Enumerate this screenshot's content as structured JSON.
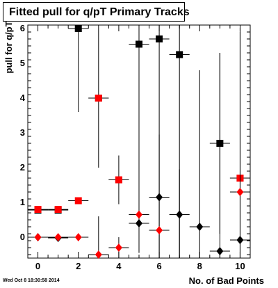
{
  "chart_data": {
    "type": "scatter",
    "title": "Fitted pull for q/pT Primary Tracks",
    "xlabel": "No. of Bad Points",
    "ylabel": "pull for q/pT",
    "timestamp": "Wed Oct  8 18:30:58 2014",
    "xlim": [
      -0.5,
      10.5
    ],
    "ylim": [
      -0.6,
      6.1
    ],
    "xticks": [
      0,
      2,
      4,
      6,
      8,
      10
    ],
    "yticks": [
      0,
      1,
      2,
      3,
      4,
      5,
      6
    ],
    "x_tick_labels": [
      "0",
      "2",
      "4",
      "6",
      "8",
      "10"
    ],
    "y_tick_labels": [
      "0",
      "1",
      "2",
      "3",
      "4",
      "5",
      "6"
    ],
    "grid": false,
    "legend": "none",
    "series": [
      {
        "marker": "square",
        "color": "#000000",
        "points": [
          {
            "x": 0,
            "y": 0.78,
            "xerr": 0.5,
            "yerr": 0.05
          },
          {
            "x": 1,
            "y": 0.78,
            "xerr": 0.5,
            "yerr": 0.05
          },
          {
            "x": 2,
            "y": 6.0,
            "xerr": 0.5,
            "yerr": 2.4
          },
          {
            "x": 3,
            "y": 4.0,
            "xerr": 0.5,
            "yerr": 2.0
          },
          {
            "x": 4,
            "y": 1.65,
            "xerr": 0.5,
            "yerr": 0.7
          },
          {
            "x": 5,
            "y": 5.55,
            "xerr": 0.5,
            "yerr": 6.0
          },
          {
            "x": 6,
            "y": 5.7,
            "xerr": 0.5,
            "yerr": 6.5
          },
          {
            "x": 7,
            "y": 5.25,
            "xerr": 0.5,
            "yerr": 6.0
          },
          {
            "x": 9,
            "y": 2.7,
            "xerr": 0.5,
            "yerr": 2.6
          },
          {
            "x": 10,
            "y": 1.7,
            "xerr": 0.5,
            "yerr": 4.2
          }
        ]
      },
      {
        "marker": "square",
        "color": "#ff0000",
        "points": [
          {
            "x": 0,
            "y": 0.8,
            "xerr": 0.5,
            "yerr": 0.05
          },
          {
            "x": 1,
            "y": 0.8,
            "xerr": 0.5,
            "yerr": 0.05
          },
          {
            "x": 2,
            "y": 1.05,
            "xerr": 0.5,
            "yerr": 0.05
          },
          {
            "x": 3,
            "y": 4.0,
            "xerr": 0.5,
            "yerr": 0.05
          },
          {
            "x": 4,
            "y": 1.65,
            "xerr": 0.5,
            "yerr": 0.05
          },
          {
            "x": 10,
            "y": 1.7,
            "xerr": 0.5,
            "yerr": 0.05
          }
        ]
      },
      {
        "marker": "diamond",
        "color": "#000000",
        "points": [
          {
            "x": 0,
            "y": 0.0,
            "xerr": 0.5,
            "yerr": 0.05
          },
          {
            "x": 1,
            "y": -0.02,
            "xerr": 0.5,
            "yerr": 0.05
          },
          {
            "x": 5,
            "y": 0.4,
            "xerr": 0.5,
            "yerr": 0.6
          },
          {
            "x": 6,
            "y": 1.15,
            "xerr": 0.5,
            "yerr": 1.8
          },
          {
            "x": 7,
            "y": 0.65,
            "xerr": 0.5,
            "yerr": 1.3
          },
          {
            "x": 8,
            "y": 0.3,
            "xerr": 0.5,
            "yerr": 4.5
          },
          {
            "x": 9,
            "y": -0.4,
            "xerr": 0.5,
            "yerr": 5.7
          },
          {
            "x": 10,
            "y": -0.08,
            "xerr": 0.5,
            "yerr": 6.1
          }
        ]
      },
      {
        "marker": "diamond",
        "color": "#ff0000",
        "points": [
          {
            "x": 0,
            "y": 0.0,
            "xerr": 0.5,
            "yerr": 0.05
          },
          {
            "x": 1,
            "y": 0.0,
            "xerr": 0.5,
            "yerr": 0.05
          },
          {
            "x": 2,
            "y": 0.0,
            "xerr": 0.5,
            "yerr": 0.05
          },
          {
            "x": 3,
            "y": -0.5,
            "xerr": 0.5,
            "yerr": 1.1
          },
          {
            "x": 4,
            "y": -0.3,
            "xerr": 0.5,
            "yerr": 0.3
          },
          {
            "x": 5,
            "y": 0.65,
            "xerr": 0.5,
            "yerr": 0.05
          },
          {
            "x": 6,
            "y": 0.2,
            "xerr": 0.5,
            "yerr": 0.05
          },
          {
            "x": 10,
            "y": 1.3,
            "xerr": 0.5,
            "yerr": 0.05
          }
        ]
      }
    ]
  }
}
